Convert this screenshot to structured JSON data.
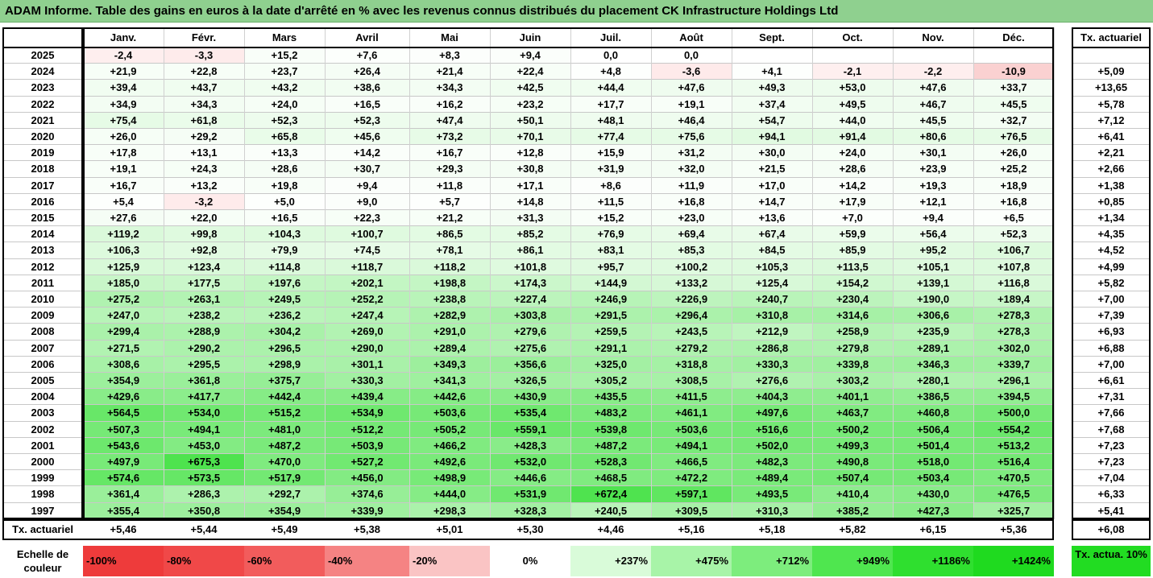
{
  "title": "ADAM Informe. Table des gains en euros à la date d'arrêté en % avec les revenus connus distribués du placement CK Infrastructure Holdings Ltd",
  "months": [
    "Janv.",
    "Févr.",
    "Mars",
    "Avril",
    "Mai",
    "Juin",
    "Juil.",
    "Août",
    "Sept.",
    "Oct.",
    "Nov.",
    "Déc."
  ],
  "tx_header": "Tx. actuariel",
  "rows": [
    {
      "year": "2025",
      "values": [
        "-2,4",
        "-3,3",
        "+15,2",
        "+7,6",
        "+8,3",
        "+9,4",
        "0,0",
        "0,0",
        "",
        "",
        "",
        ""
      ],
      "tx": ""
    },
    {
      "year": "2024",
      "values": [
        "+21,9",
        "+22,8",
        "+23,7",
        "+26,4",
        "+21,4",
        "+22,4",
        "+4,8",
        "-3,6",
        "+4,1",
        "-2,1",
        "-2,2",
        "-10,9"
      ],
      "tx": "+5,09"
    },
    {
      "year": "2023",
      "values": [
        "+39,4",
        "+43,7",
        "+43,2",
        "+38,6",
        "+34,3",
        "+42,5",
        "+44,4",
        "+47,6",
        "+49,3",
        "+53,0",
        "+47,6",
        "+33,7"
      ],
      "tx": "+13,65"
    },
    {
      "year": "2022",
      "values": [
        "+34,9",
        "+34,3",
        "+24,0",
        "+16,5",
        "+16,2",
        "+23,2",
        "+17,7",
        "+19,1",
        "+37,4",
        "+49,5",
        "+46,7",
        "+45,5"
      ],
      "tx": "+5,78"
    },
    {
      "year": "2021",
      "values": [
        "+75,4",
        "+61,8",
        "+52,3",
        "+52,3",
        "+47,4",
        "+50,1",
        "+48,1",
        "+46,4",
        "+54,7",
        "+44,0",
        "+45,5",
        "+32,7"
      ],
      "tx": "+7,12"
    },
    {
      "year": "2020",
      "values": [
        "+26,0",
        "+29,2",
        "+65,8",
        "+45,6",
        "+73,2",
        "+70,1",
        "+77,4",
        "+75,6",
        "+94,1",
        "+91,4",
        "+80,6",
        "+76,5"
      ],
      "tx": "+6,41"
    },
    {
      "year": "2019",
      "values": [
        "+17,8",
        "+13,1",
        "+13,3",
        "+14,2",
        "+16,7",
        "+12,8",
        "+15,9",
        "+31,2",
        "+30,0",
        "+24,0",
        "+30,1",
        "+26,0"
      ],
      "tx": "+2,21"
    },
    {
      "year": "2018",
      "values": [
        "+19,1",
        "+24,3",
        "+28,6",
        "+30,7",
        "+29,3",
        "+30,8",
        "+31,9",
        "+32,0",
        "+21,5",
        "+28,6",
        "+23,9",
        "+25,2"
      ],
      "tx": "+2,66"
    },
    {
      "year": "2017",
      "values": [
        "+16,7",
        "+13,2",
        "+19,8",
        "+9,4",
        "+11,8",
        "+17,1",
        "+8,6",
        "+11,9",
        "+17,0",
        "+14,2",
        "+19,3",
        "+18,9"
      ],
      "tx": "+1,38"
    },
    {
      "year": "2016",
      "values": [
        "+5,4",
        "-3,2",
        "+5,0",
        "+9,0",
        "+5,7",
        "+14,8",
        "+11,5",
        "+16,8",
        "+14,7",
        "+17,9",
        "+12,1",
        "+16,8"
      ],
      "tx": "+0,85"
    },
    {
      "year": "2015",
      "values": [
        "+27,6",
        "+22,0",
        "+16,5",
        "+22,3",
        "+21,2",
        "+31,3",
        "+15,2",
        "+23,0",
        "+13,6",
        "+7,0",
        "+9,4",
        "+6,5"
      ],
      "tx": "+1,34"
    },
    {
      "year": "2014",
      "values": [
        "+119,2",
        "+99,8",
        "+104,3",
        "+100,7",
        "+86,5",
        "+85,2",
        "+76,9",
        "+69,4",
        "+67,4",
        "+59,9",
        "+56,4",
        "+52,3"
      ],
      "tx": "+4,35"
    },
    {
      "year": "2013",
      "values": [
        "+106,3",
        "+92,8",
        "+79,9",
        "+74,5",
        "+78,1",
        "+86,1",
        "+83,1",
        "+85,3",
        "+84,5",
        "+85,9",
        "+95,2",
        "+106,7"
      ],
      "tx": "+4,52"
    },
    {
      "year": "2012",
      "values": [
        "+125,9",
        "+123,4",
        "+114,8",
        "+118,7",
        "+118,2",
        "+101,8",
        "+95,7",
        "+100,2",
        "+105,3",
        "+113,5",
        "+105,1",
        "+107,8"
      ],
      "tx": "+4,99"
    },
    {
      "year": "2011",
      "values": [
        "+185,0",
        "+177,5",
        "+197,6",
        "+202,1",
        "+198,8",
        "+174,3",
        "+144,9",
        "+133,2",
        "+125,4",
        "+154,2",
        "+139,1",
        "+116,8"
      ],
      "tx": "+5,82"
    },
    {
      "year": "2010",
      "values": [
        "+275,2",
        "+263,1",
        "+249,5",
        "+252,2",
        "+238,8",
        "+227,4",
        "+246,9",
        "+226,9",
        "+240,7",
        "+230,4",
        "+190,0",
        "+189,4"
      ],
      "tx": "+7,00"
    },
    {
      "year": "2009",
      "values": [
        "+247,0",
        "+238,2",
        "+236,2",
        "+247,4",
        "+282,9",
        "+303,8",
        "+291,5",
        "+296,4",
        "+310,8",
        "+314,6",
        "+306,6",
        "+278,3"
      ],
      "tx": "+7,39"
    },
    {
      "year": "2008",
      "values": [
        "+299,4",
        "+288,9",
        "+304,2",
        "+269,0",
        "+291,0",
        "+279,6",
        "+259,5",
        "+243,5",
        "+212,9",
        "+258,9",
        "+235,9",
        "+278,3"
      ],
      "tx": "+6,93"
    },
    {
      "year": "2007",
      "values": [
        "+271,5",
        "+290,2",
        "+296,5",
        "+290,0",
        "+289,4",
        "+275,6",
        "+291,1",
        "+279,2",
        "+286,8",
        "+279,8",
        "+289,1",
        "+302,0"
      ],
      "tx": "+6,88"
    },
    {
      "year": "2006",
      "values": [
        "+308,6",
        "+295,5",
        "+298,9",
        "+301,1",
        "+349,3",
        "+356,6",
        "+325,0",
        "+318,8",
        "+330,3",
        "+339,8",
        "+346,3",
        "+339,7"
      ],
      "tx": "+7,00"
    },
    {
      "year": "2005",
      "values": [
        "+354,9",
        "+361,8",
        "+375,7",
        "+330,3",
        "+341,3",
        "+326,5",
        "+305,2",
        "+308,5",
        "+276,6",
        "+303,2",
        "+280,1",
        "+296,1"
      ],
      "tx": "+6,61"
    },
    {
      "year": "2004",
      "values": [
        "+429,6",
        "+417,7",
        "+442,4",
        "+439,4",
        "+442,6",
        "+430,9",
        "+435,5",
        "+411,5",
        "+404,3",
        "+401,1",
        "+386,5",
        "+394,5"
      ],
      "tx": "+7,31"
    },
    {
      "year": "2003",
      "values": [
        "+564,5",
        "+534,0",
        "+515,2",
        "+534,9",
        "+503,6",
        "+535,4",
        "+483,2",
        "+461,1",
        "+497,6",
        "+463,7",
        "+460,8",
        "+500,0"
      ],
      "tx": "+7,66"
    },
    {
      "year": "2002",
      "values": [
        "+507,3",
        "+494,1",
        "+481,0",
        "+512,2",
        "+505,2",
        "+559,1",
        "+539,8",
        "+503,6",
        "+516,6",
        "+500,2",
        "+506,4",
        "+554,2"
      ],
      "tx": "+7,68"
    },
    {
      "year": "2001",
      "values": [
        "+543,6",
        "+453,0",
        "+487,2",
        "+503,9",
        "+466,2",
        "+428,3",
        "+487,2",
        "+494,1",
        "+502,0",
        "+499,3",
        "+501,4",
        "+513,2"
      ],
      "tx": "+7,23"
    },
    {
      "year": "2000",
      "values": [
        "+497,9",
        "+675,3",
        "+470,0",
        "+527,2",
        "+492,6",
        "+532,0",
        "+528,3",
        "+466,5",
        "+482,3",
        "+490,8",
        "+518,0",
        "+516,4"
      ],
      "tx": "+7,23"
    },
    {
      "year": "1999",
      "values": [
        "+574,6",
        "+573,5",
        "+517,9",
        "+456,0",
        "+498,9",
        "+446,6",
        "+468,5",
        "+472,2",
        "+489,4",
        "+507,4",
        "+503,4",
        "+470,5"
      ],
      "tx": "+7,04"
    },
    {
      "year": "1998",
      "values": [
        "+361,4",
        "+286,3",
        "+292,7",
        "+374,6",
        "+444,0",
        "+531,9",
        "+672,4",
        "+597,1",
        "+493,5",
        "+410,4",
        "+430,0",
        "+476,5"
      ],
      "tx": "+6,33"
    },
    {
      "year": "1997",
      "values": [
        "+355,4",
        "+350,8",
        "+354,9",
        "+339,9",
        "+298,3",
        "+328,3",
        "+240,5",
        "+309,5",
        "+310,3",
        "+385,2",
        "+427,3",
        "+325,7"
      ],
      "tx": "+5,41"
    }
  ],
  "footer": {
    "label": "Tx. actuariel",
    "values": [
      "+5,46",
      "+5,44",
      "+5,49",
      "+5,38",
      "+5,01",
      "+5,30",
      "+4,46",
      "+5,16",
      "+5,18",
      "+5,82",
      "+6,15",
      "+5,36"
    ],
    "tx": "+6,08"
  },
  "legend": {
    "label": "Echelle de couleur",
    "items": [
      {
        "text": "-100%",
        "color": "#ee3b3b",
        "align": "left"
      },
      {
        "text": "-80%",
        "color": "#f04848",
        "align": "left"
      },
      {
        "text": "-60%",
        "color": "#f25c5c",
        "align": "left"
      },
      {
        "text": "-40%",
        "color": "#f58383",
        "align": "left"
      },
      {
        "text": "-20%",
        "color": "#fac4c4",
        "align": "left"
      },
      {
        "text": "0%",
        "color": "#ffffff",
        "align": "center"
      },
      {
        "text": "+237%",
        "color": "#d9fbd9",
        "align": "right"
      },
      {
        "text": "+475%",
        "color": "#a8f4a8",
        "align": "right"
      },
      {
        "text": "+712%",
        "color": "#7ded7d",
        "align": "right"
      },
      {
        "text": "+949%",
        "color": "#4fe64f",
        "align": "right"
      },
      {
        "text": "+1186%",
        "color": "#2fdf2f",
        "align": "right"
      },
      {
        "text": "+1424%",
        "color": "#1fda1f",
        "align": "right"
      }
    ],
    "tx_label": "Tx. actua. 10%",
    "tx_color": "#22dc22"
  },
  "colors": {
    "title_bg": "#8fd08f",
    "positive_max": "#1fda1f",
    "negative": "#fbd2d2"
  }
}
